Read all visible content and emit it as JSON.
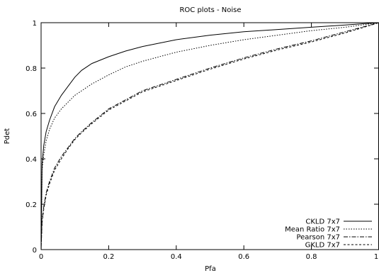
{
  "chart_data": {
    "type": "line",
    "title": "ROC plots - Noise",
    "xlabel": "Pfa",
    "ylabel": "Pdet",
    "xlim": [
      0,
      1
    ],
    "ylim": [
      0,
      1
    ],
    "xticks": [
      0,
      0.2,
      0.4,
      0.6,
      0.8,
      1
    ],
    "yticks": [
      0,
      0.2,
      0.4,
      0.6,
      0.8,
      1
    ],
    "x_tick_labels": [
      "0",
      "0.2",
      "0.4",
      "0.6",
      "0.8",
      "1"
    ],
    "y_tick_labels": [
      "0",
      "0.2",
      "0.4",
      "0.6",
      "0.8",
      "1"
    ],
    "grid": false,
    "legend_position": "bottom-right",
    "series": [
      {
        "name": "CKLD 7x7",
        "dash": "solid",
        "x": [
          0,
          0.003,
          0.008,
          0.015,
          0.025,
          0.04,
          0.06,
          0.08,
          0.1,
          0.12,
          0.15,
          0.2,
          0.25,
          0.3,
          0.4,
          0.5,
          0.6,
          0.7,
          0.8,
          0.9,
          1.0
        ],
        "y": [
          0,
          0.38,
          0.46,
          0.52,
          0.57,
          0.63,
          0.68,
          0.72,
          0.76,
          0.79,
          0.82,
          0.85,
          0.875,
          0.895,
          0.925,
          0.945,
          0.96,
          0.97,
          0.98,
          0.99,
          1.0
        ]
      },
      {
        "name": "Mean Ratio 7x7",
        "dash": "dotted",
        "x": [
          0,
          0.003,
          0.008,
          0.015,
          0.025,
          0.04,
          0.06,
          0.08,
          0.1,
          0.12,
          0.15,
          0.2,
          0.25,
          0.3,
          0.4,
          0.5,
          0.6,
          0.7,
          0.8,
          0.9,
          1.0
        ],
        "y": [
          0,
          0.35,
          0.42,
          0.48,
          0.53,
          0.58,
          0.62,
          0.65,
          0.68,
          0.7,
          0.73,
          0.77,
          0.805,
          0.83,
          0.87,
          0.9,
          0.925,
          0.945,
          0.965,
          0.98,
          1.0
        ]
      },
      {
        "name": "Pearson 7x7",
        "dash": "dashdot",
        "x": [
          0,
          0.003,
          0.008,
          0.015,
          0.025,
          0.04,
          0.06,
          0.08,
          0.1,
          0.12,
          0.15,
          0.2,
          0.25,
          0.3,
          0.4,
          0.5,
          0.6,
          0.7,
          0.8,
          0.9,
          1.0
        ],
        "y": [
          0,
          0.13,
          0.19,
          0.25,
          0.3,
          0.36,
          0.41,
          0.45,
          0.49,
          0.52,
          0.56,
          0.62,
          0.66,
          0.7,
          0.75,
          0.8,
          0.845,
          0.885,
          0.92,
          0.96,
          1.0
        ]
      },
      {
        "name": "GKLD 7x7",
        "dash": "dashed",
        "x": [
          0,
          0.003,
          0.008,
          0.015,
          0.025,
          0.04,
          0.06,
          0.08,
          0.1,
          0.12,
          0.15,
          0.2,
          0.25,
          0.3,
          0.4,
          0.5,
          0.6,
          0.7,
          0.8,
          0.9,
          1.0
        ],
        "y": [
          0,
          0.12,
          0.18,
          0.24,
          0.29,
          0.35,
          0.4,
          0.445,
          0.485,
          0.515,
          0.555,
          0.615,
          0.655,
          0.695,
          0.745,
          0.795,
          0.84,
          0.88,
          0.915,
          0.955,
          1.0
        ]
      }
    ]
  }
}
